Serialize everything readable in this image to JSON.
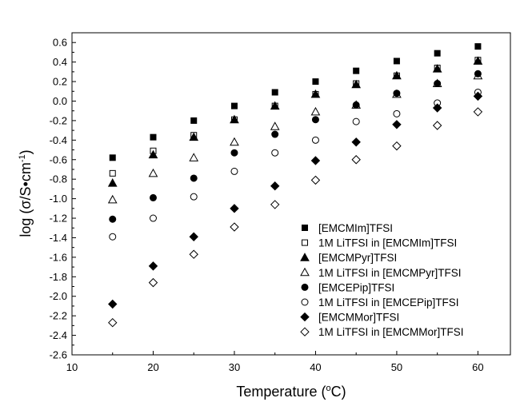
{
  "chart_data": {
    "type": "scatter",
    "xlabel_main": "Temperature (",
    "xlabel_sup": "o",
    "xlabel_end": "C)",
    "ylabel_main": "log (σ/S•cm",
    "ylabel_sup": "-1",
    "ylabel_end": ")",
    "xlim": [
      10,
      64
    ],
    "ylim": [
      -2.6,
      0.7
    ],
    "xticks": [
      10,
      20,
      30,
      40,
      50,
      60
    ],
    "yticks": [
      -2.6,
      -2.4,
      -2.2,
      -2.0,
      -1.8,
      -1.6,
      -1.4,
      -1.2,
      -1.0,
      -0.8,
      -0.6,
      -0.4,
      -0.2,
      0.0,
      0.2,
      0.4,
      0.6
    ],
    "xtick_labels": [
      "10",
      "20",
      "30",
      "40",
      "50",
      "60"
    ],
    "ytick_labels": [
      "-2.6",
      "-2.4",
      "-2.2",
      "-2.0",
      "-1.8",
      "-1.6",
      "-1.4",
      "-1.2",
      "-1.0",
      "-0.8",
      "-0.6",
      "-0.4",
      "-0.2",
      "0.0",
      "0.2",
      "0.4",
      "0.6"
    ],
    "x": [
      15,
      20,
      25,
      30,
      35,
      40,
      45,
      50,
      55,
      60
    ],
    "legend_position": "bottom-right",
    "series": [
      {
        "name": "[EMCMIm]TFSI",
        "marker": "square",
        "filled": true,
        "values": [
          -0.58,
          -0.37,
          -0.2,
          -0.05,
          0.09,
          0.2,
          0.31,
          0.41,
          0.49,
          0.56
        ]
      },
      {
        "name": "1M LiTFSI in [EMCMIm]TFSI",
        "marker": "square",
        "filled": false,
        "values": [
          -0.74,
          -0.51,
          -0.35,
          -0.19,
          -0.05,
          0.07,
          0.18,
          0.26,
          0.34,
          0.42
        ]
      },
      {
        "name": "[EMCMPyr]TFSI",
        "marker": "triangle",
        "filled": true,
        "values": [
          -0.84,
          -0.55,
          -0.37,
          -0.19,
          -0.05,
          0.07,
          0.17,
          0.26,
          0.33,
          0.41
        ]
      },
      {
        "name": "1M LiTFSI in [EMCMPyr]TFSI",
        "marker": "triangle",
        "filled": false,
        "values": [
          -1.01,
          -0.74,
          -0.58,
          -0.42,
          -0.26,
          -0.11,
          -0.04,
          0.07,
          0.18,
          0.26
        ]
      },
      {
        "name": "[EMCEPip]TFSI",
        "marker": "circle",
        "filled": true,
        "values": [
          -1.21,
          -0.99,
          -0.79,
          -0.53,
          -0.34,
          -0.19,
          -0.04,
          0.08,
          0.18,
          0.28
        ]
      },
      {
        "name": "1M LiTFSI in [EMCEPip]TFSI",
        "marker": "circle",
        "filled": false,
        "values": [
          -1.39,
          -1.2,
          -0.98,
          -0.72,
          -0.53,
          -0.4,
          -0.21,
          -0.13,
          -0.02,
          0.09
        ]
      },
      {
        "name": "[EMCMMor]TFSI",
        "marker": "diamond",
        "filled": true,
        "values": [
          -2.08,
          -1.69,
          -1.39,
          -1.1,
          -0.87,
          -0.61,
          -0.42,
          -0.24,
          -0.07,
          0.05
        ]
      },
      {
        "name": "1M LiTFSI in [EMCMMor]TFSI",
        "marker": "diamond",
        "filled": false,
        "values": [
          -2.27,
          -1.86,
          -1.57,
          -1.29,
          -1.06,
          -0.81,
          -0.6,
          -0.46,
          -0.25,
          -0.11
        ]
      }
    ]
  }
}
